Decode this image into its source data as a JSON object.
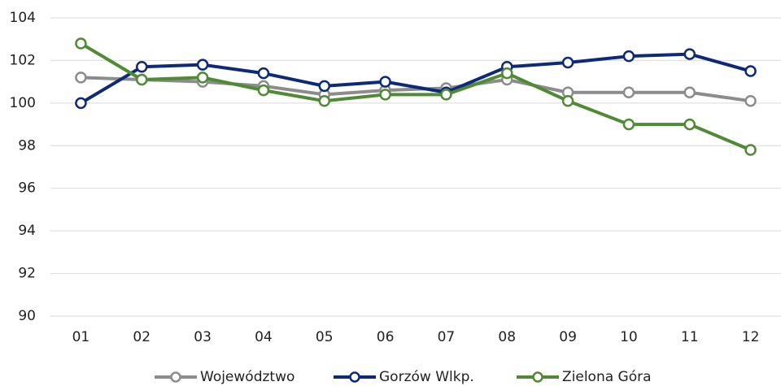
{
  "chart_data": {
    "type": "line",
    "categories": [
      "01",
      "02",
      "03",
      "04",
      "05",
      "06",
      "07",
      "08",
      "09",
      "10",
      "11",
      "12"
    ],
    "series": [
      {
        "name": "Województwo",
        "color": "#8c8c8c",
        "values": [
          101.2,
          101.1,
          101.0,
          100.8,
          100.4,
          100.6,
          100.7,
          101.1,
          100.5,
          100.5,
          100.5,
          100.1
        ]
      },
      {
        "name": "Gorzów Wlkp.",
        "color": "#0d2a7a",
        "values": [
          100.0,
          101.7,
          101.8,
          101.4,
          100.8,
          101.0,
          100.5,
          101.7,
          101.9,
          102.2,
          102.3,
          101.5
        ]
      },
      {
        "name": "Zielona Góra",
        "color": "#4f8a35",
        "values": [
          102.8,
          101.1,
          101.2,
          100.6,
          100.1,
          100.4,
          100.4,
          101.4,
          100.1,
          99.0,
          99.0,
          97.8
        ]
      }
    ],
    "ylim": [
      90,
      104
    ],
    "yticks": [
      90,
      92,
      94,
      96,
      98,
      100,
      102,
      104
    ],
    "grid": true,
    "legend": "bottom"
  }
}
